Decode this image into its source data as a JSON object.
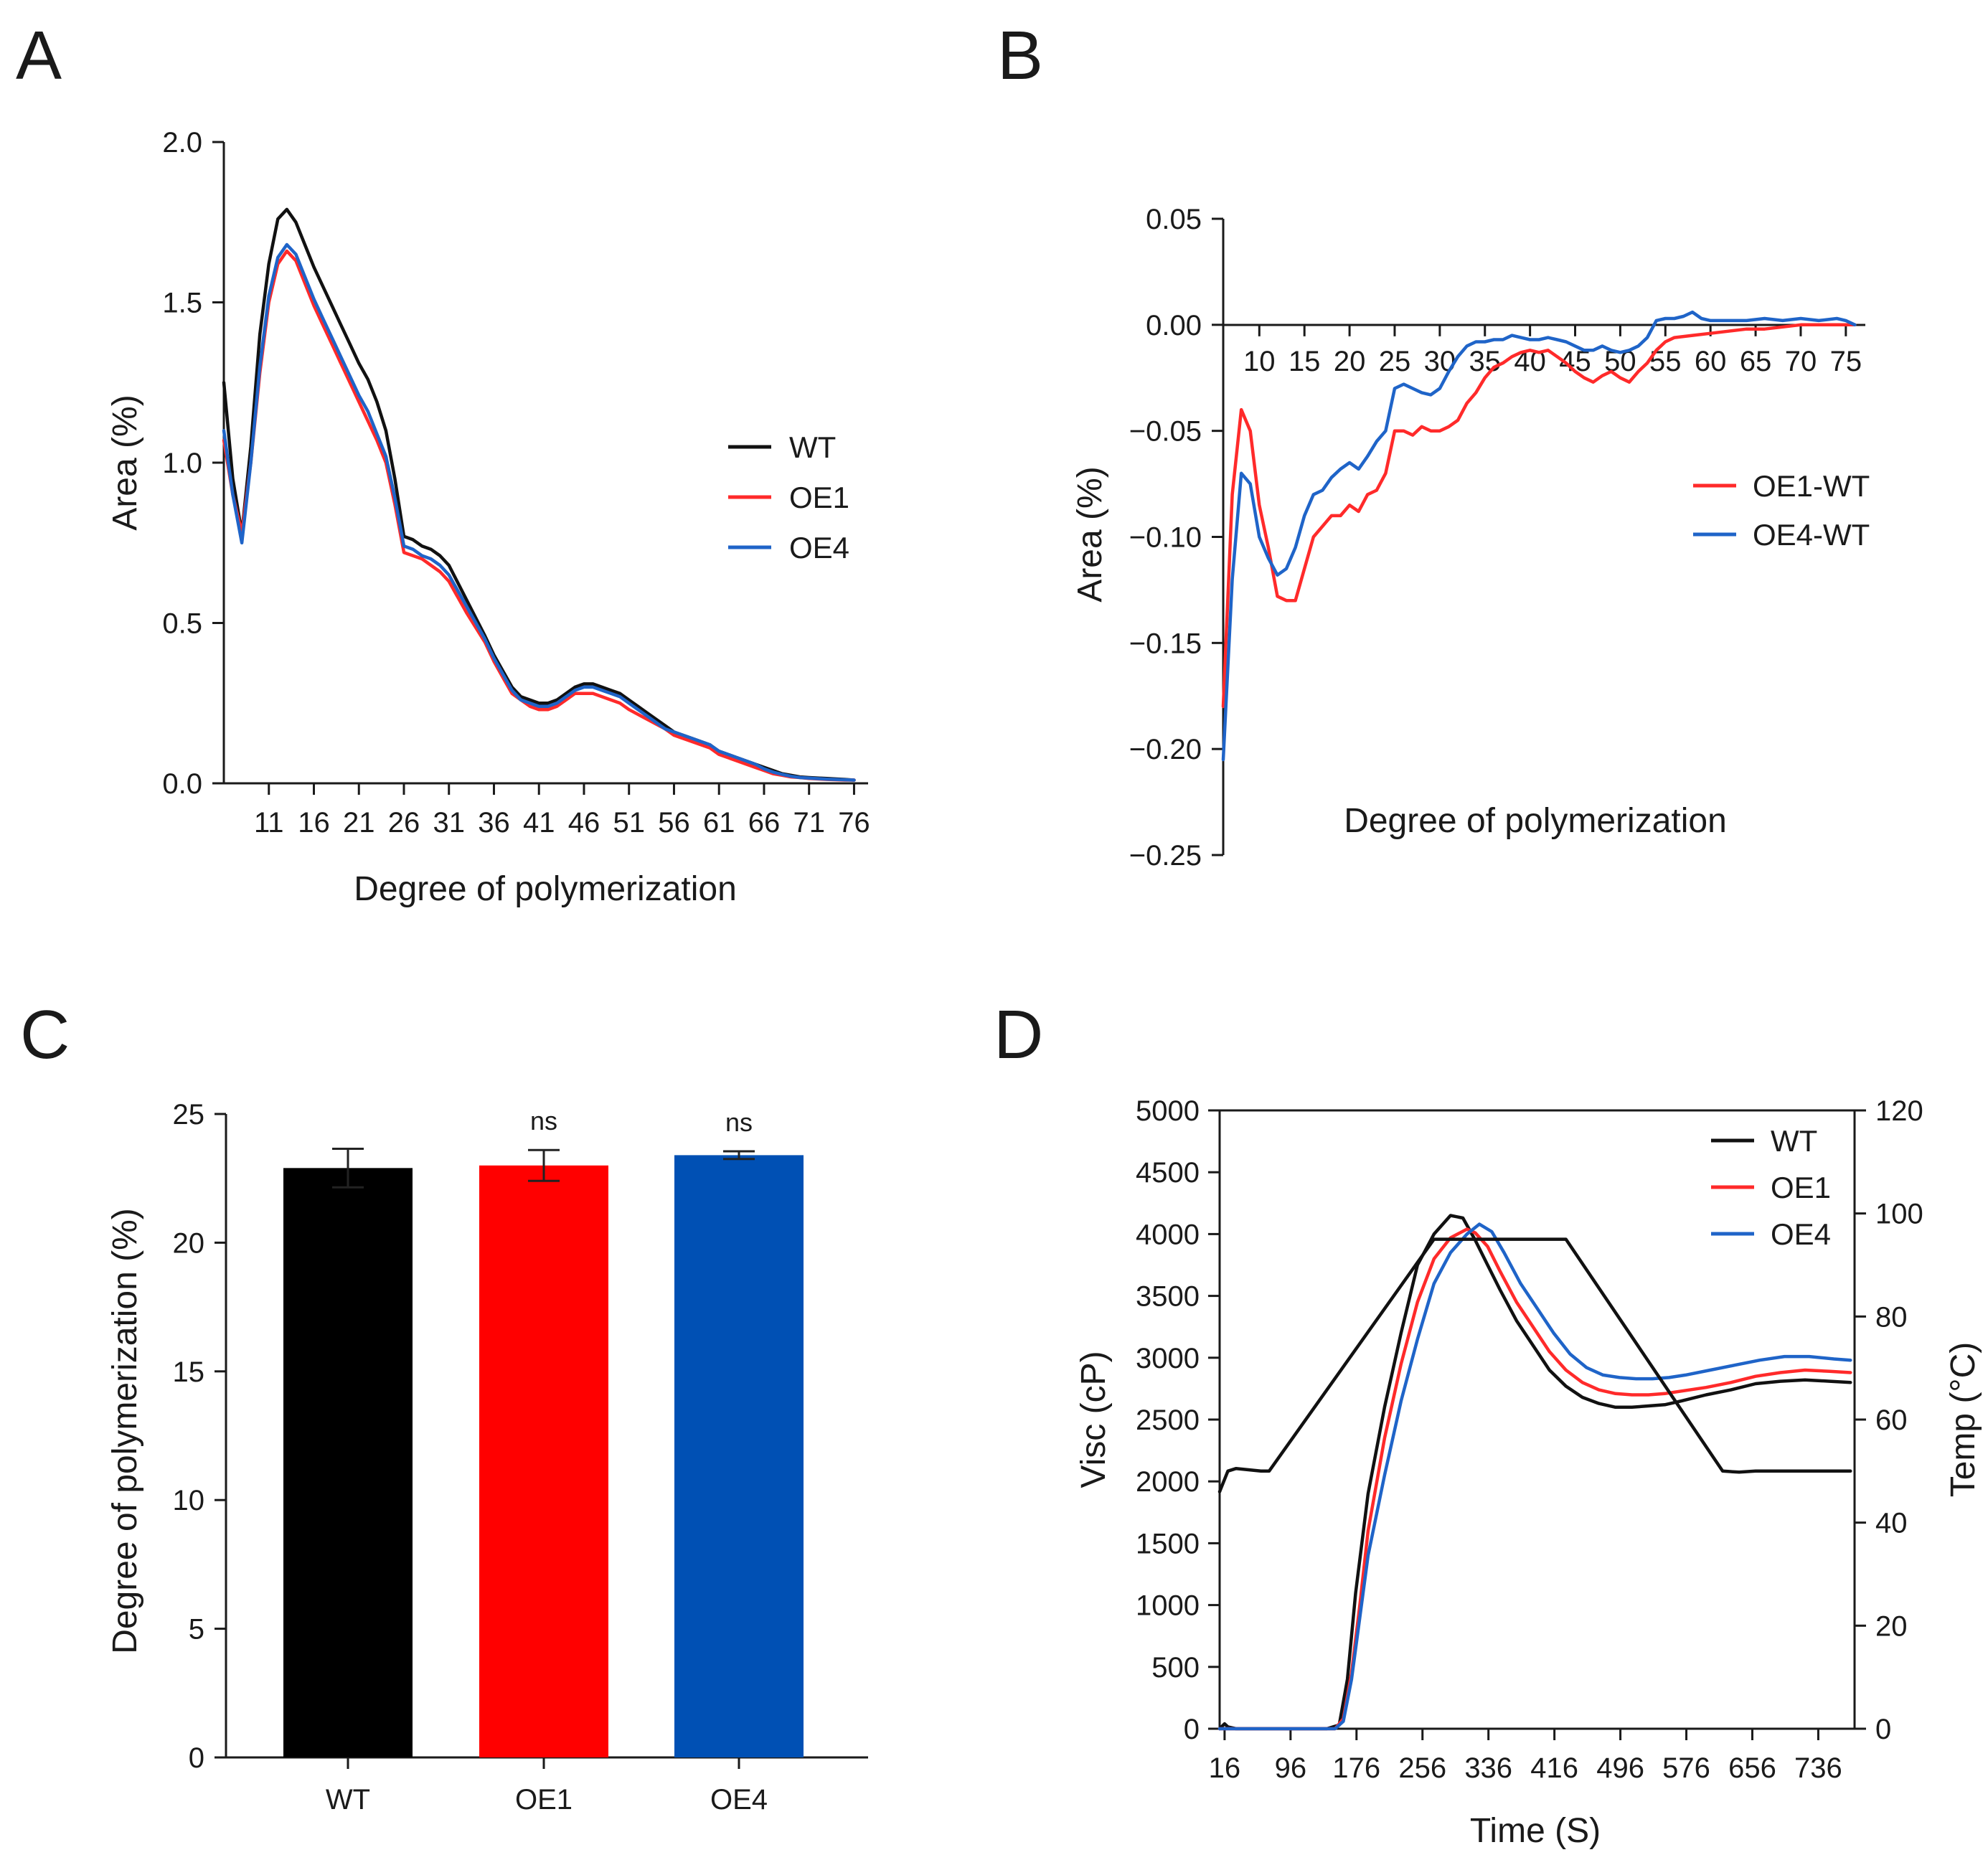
{
  "colors": {
    "WT": "#111111",
    "OE1": "#ff2a2a",
    "OE4": "#1f64c8",
    "bar_WT": "#000000",
    "bar_OE1": "#ff0000",
    "bar_OE4": "#0050b4"
  },
  "chart_data": [
    {
      "panel": "A",
      "type": "line",
      "title": "",
      "xlabel": "Degree of polymerization",
      "ylabel": "Area (%)",
      "xlim": [
        6,
        77
      ],
      "ylim": [
        0,
        2.0
      ],
      "xticks": [
        11,
        16,
        21,
        26,
        31,
        36,
        41,
        46,
        51,
        56,
        61,
        66,
        71,
        76
      ],
      "yticks": [
        0.0,
        0.5,
        1.0,
        1.5,
        2.0
      ],
      "ytick_labels": [
        "0.0",
        "0.5",
        "1.0",
        "1.5",
        "2.0"
      ],
      "legend": [
        "WT",
        "OE1",
        "OE4"
      ],
      "legend_position": "right",
      "series": [
        {
          "name": "WT",
          "x": [
            6,
            7,
            8,
            9,
            10,
            11,
            12,
            13,
            14,
            15,
            16,
            17,
            18,
            19,
            20,
            21,
            22,
            23,
            24,
            25,
            26,
            27,
            28,
            29,
            30,
            31,
            33,
            35,
            36,
            37,
            38,
            39,
            40,
            41,
            42,
            43,
            44,
            45,
            46,
            47,
            48,
            49,
            50,
            51,
            53,
            55,
            56,
            58,
            60,
            61,
            63,
            65,
            66,
            67,
            68,
            69,
            70,
            71,
            73,
            75,
            76
          ],
          "values": [
            1.25,
            0.95,
            0.78,
            1.05,
            1.4,
            1.62,
            1.76,
            1.79,
            1.75,
            1.68,
            1.61,
            1.55,
            1.49,
            1.43,
            1.37,
            1.31,
            1.26,
            1.19,
            1.1,
            0.95,
            0.77,
            0.76,
            0.74,
            0.73,
            0.71,
            0.68,
            0.57,
            0.46,
            0.4,
            0.35,
            0.3,
            0.27,
            0.26,
            0.25,
            0.25,
            0.26,
            0.28,
            0.3,
            0.31,
            0.31,
            0.3,
            0.29,
            0.28,
            0.26,
            0.22,
            0.18,
            0.16,
            0.14,
            0.12,
            0.1,
            0.08,
            0.06,
            0.05,
            0.04,
            0.03,
            0.025,
            0.02,
            0.018,
            0.015,
            0.012,
            0.01
          ]
        },
        {
          "name": "OE1",
          "x": [
            6,
            7,
            8,
            9,
            10,
            11,
            12,
            13,
            14,
            15,
            16,
            17,
            18,
            19,
            20,
            21,
            22,
            23,
            24,
            25,
            26,
            27,
            28,
            29,
            30,
            31,
            33,
            35,
            36,
            37,
            38,
            39,
            40,
            41,
            42,
            43,
            44,
            45,
            46,
            47,
            48,
            49,
            50,
            51,
            53,
            55,
            56,
            58,
            60,
            61,
            63,
            65,
            66,
            67,
            68,
            69,
            70,
            71,
            73,
            75,
            76
          ],
          "values": [
            1.07,
            0.9,
            0.78,
            1.0,
            1.28,
            1.5,
            1.62,
            1.66,
            1.63,
            1.56,
            1.49,
            1.43,
            1.37,
            1.31,
            1.25,
            1.19,
            1.13,
            1.07,
            1.0,
            0.87,
            0.72,
            0.71,
            0.7,
            0.68,
            0.66,
            0.63,
            0.53,
            0.44,
            0.38,
            0.33,
            0.28,
            0.26,
            0.24,
            0.23,
            0.23,
            0.24,
            0.26,
            0.28,
            0.28,
            0.28,
            0.27,
            0.26,
            0.25,
            0.23,
            0.2,
            0.17,
            0.15,
            0.13,
            0.11,
            0.09,
            0.07,
            0.05,
            0.04,
            0.03,
            0.025,
            0.02,
            0.018,
            0.015,
            0.012,
            0.01,
            0.01
          ]
        },
        {
          "name": "OE4",
          "x": [
            6,
            7,
            8,
            9,
            10,
            11,
            12,
            13,
            14,
            15,
            16,
            17,
            18,
            19,
            20,
            21,
            22,
            23,
            24,
            25,
            26,
            27,
            28,
            29,
            30,
            31,
            33,
            35,
            36,
            37,
            38,
            39,
            40,
            41,
            42,
            43,
            44,
            45,
            46,
            47,
            48,
            49,
            50,
            51,
            53,
            55,
            56,
            58,
            60,
            61,
            63,
            65,
            66,
            67,
            68,
            69,
            70,
            71,
            73,
            75,
            76
          ],
          "values": [
            1.1,
            0.9,
            0.75,
            1.0,
            1.3,
            1.52,
            1.64,
            1.68,
            1.65,
            1.58,
            1.51,
            1.45,
            1.39,
            1.33,
            1.27,
            1.21,
            1.16,
            1.09,
            1.02,
            0.89,
            0.74,
            0.73,
            0.71,
            0.7,
            0.68,
            0.65,
            0.55,
            0.45,
            0.39,
            0.34,
            0.29,
            0.26,
            0.25,
            0.24,
            0.24,
            0.25,
            0.27,
            0.29,
            0.3,
            0.3,
            0.29,
            0.28,
            0.27,
            0.25,
            0.21,
            0.17,
            0.16,
            0.14,
            0.12,
            0.1,
            0.08,
            0.06,
            0.045,
            0.035,
            0.028,
            0.022,
            0.018,
            0.016,
            0.013,
            0.011,
            0.01
          ]
        }
      ]
    },
    {
      "panel": "B",
      "type": "line",
      "title": "",
      "xlabel": "Degree of polymerization",
      "ylabel": "Area (%)",
      "xlim": [
        6,
        77
      ],
      "ylim": [
        -0.25,
        0.05
      ],
      "xticks": [
        10,
        15,
        20,
        25,
        30,
        35,
        40,
        45,
        50,
        55,
        60,
        65,
        70,
        75
      ],
      "yticks": [
        -0.25,
        -0.2,
        -0.15,
        -0.1,
        -0.05,
        0.0,
        0.05
      ],
      "ytick_labels": [
        "−0.25",
        "−0.20",
        "−0.15",
        "−0.10",
        "−0.05",
        "0.00",
        "0.05"
      ],
      "legend": [
        "OE1-WT",
        "OE4-WT"
      ],
      "legend_position": "right",
      "series": [
        {
          "name": "OE1-WT",
          "x": [
            6,
            7,
            8,
            9,
            10,
            11,
            12,
            13,
            14,
            15,
            16,
            17,
            18,
            19,
            20,
            21,
            22,
            23,
            24,
            25,
            26,
            27,
            28,
            29,
            30,
            31,
            32,
            33,
            34,
            35,
            36,
            37,
            38,
            39,
            40,
            41,
            42,
            43,
            44,
            45,
            46,
            47,
            48,
            49,
            50,
            51,
            52,
            53,
            54,
            55,
            56,
            58,
            60,
            62,
            64,
            66,
            68,
            70,
            72,
            74,
            76
          ],
          "values": [
            -0.18,
            -0.08,
            -0.04,
            -0.05,
            -0.085,
            -0.105,
            -0.128,
            -0.13,
            -0.13,
            -0.115,
            -0.1,
            -0.095,
            -0.09,
            -0.09,
            -0.085,
            -0.088,
            -0.08,
            -0.078,
            -0.07,
            -0.05,
            -0.05,
            -0.052,
            -0.048,
            -0.05,
            -0.05,
            -0.048,
            -0.045,
            -0.037,
            -0.032,
            -0.025,
            -0.02,
            -0.018,
            -0.015,
            -0.013,
            -0.012,
            -0.013,
            -0.012,
            -0.015,
            -0.018,
            -0.022,
            -0.025,
            -0.027,
            -0.024,
            -0.022,
            -0.025,
            -0.027,
            -0.022,
            -0.018,
            -0.012,
            -0.008,
            -0.006,
            -0.005,
            -0.004,
            -0.003,
            -0.002,
            -0.002,
            -0.001,
            0.0,
            0.0,
            0.0,
            0.0
          ]
        },
        {
          "name": "OE4-WT",
          "x": [
            6,
            7,
            8,
            9,
            10,
            11,
            12,
            13,
            14,
            15,
            16,
            17,
            18,
            19,
            20,
            21,
            22,
            23,
            24,
            25,
            26,
            27,
            28,
            29,
            30,
            31,
            32,
            33,
            34,
            35,
            36,
            37,
            38,
            39,
            40,
            41,
            42,
            43,
            44,
            45,
            46,
            47,
            48,
            49,
            50,
            51,
            52,
            53,
            54,
            55,
            56,
            57,
            58,
            59,
            60,
            62,
            64,
            66,
            68,
            70,
            72,
            74,
            75,
            76
          ],
          "values": [
            -0.205,
            -0.12,
            -0.07,
            -0.075,
            -0.1,
            -0.11,
            -0.118,
            -0.115,
            -0.105,
            -0.09,
            -0.08,
            -0.078,
            -0.072,
            -0.068,
            -0.065,
            -0.068,
            -0.062,
            -0.055,
            -0.05,
            -0.03,
            -0.028,
            -0.03,
            -0.032,
            -0.033,
            -0.03,
            -0.022,
            -0.015,
            -0.01,
            -0.008,
            -0.008,
            -0.007,
            -0.007,
            -0.005,
            -0.006,
            -0.007,
            -0.007,
            -0.006,
            -0.007,
            -0.008,
            -0.01,
            -0.012,
            -0.012,
            -0.01,
            -0.012,
            -0.013,
            -0.012,
            -0.01,
            -0.006,
            0.002,
            0.003,
            0.003,
            0.004,
            0.006,
            0.003,
            0.002,
            0.002,
            0.002,
            0.003,
            0.002,
            0.003,
            0.002,
            0.003,
            0.002,
            0.0
          ]
        }
      ]
    },
    {
      "panel": "C",
      "type": "bar",
      "title": "",
      "xlabel": "",
      "ylabel": "Degree of polymerization (%)",
      "ylim": [
        0,
        25
      ],
      "yticks": [
        0,
        5,
        10,
        15,
        20,
        25
      ],
      "categories": [
        "WT",
        "OE1",
        "OE4"
      ],
      "values": [
        22.9,
        23.0,
        23.4
      ],
      "errors": [
        0.75,
        0.6,
        0.15
      ],
      "annotations": [
        "",
        "ns",
        "ns"
      ]
    },
    {
      "panel": "D",
      "type": "line",
      "title": "",
      "xlabel": "Time (S)",
      "ylabel": "Visc (cP)",
      "y2label": "Temp (°C)",
      "xlim": [
        10,
        780
      ],
      "ylim": [
        0,
        5000
      ],
      "y2lim": [
        0,
        120
      ],
      "xticks": [
        16,
        96,
        176,
        256,
        336,
        416,
        496,
        576,
        656,
        736
      ],
      "yticks": [
        0,
        500,
        1000,
        1500,
        2000,
        2500,
        3000,
        3500,
        4000,
        4500,
        5000
      ],
      "y2ticks": [
        0,
        20,
        40,
        60,
        80,
        100,
        120
      ],
      "legend": [
        "WT",
        "OE1",
        "OE4"
      ],
      "legend_position": "top-right",
      "series": [
        {
          "name": "WT",
          "axis": "left",
          "x": [
            10,
            16,
            20,
            30,
            140,
            155,
            165,
            175,
            190,
            210,
            230,
            250,
            270,
            290,
            305,
            320,
            335,
            350,
            370,
            390,
            410,
            430,
            450,
            470,
            490,
            510,
            530,
            550,
            570,
            600,
            630,
            660,
            690,
            720,
            750,
            775
          ],
          "values": [
            0,
            40,
            15,
            0,
            0,
            30,
            400,
            1100,
            1900,
            2600,
            3200,
            3750,
            4000,
            4150,
            4130,
            3950,
            3750,
            3550,
            3300,
            3100,
            2900,
            2770,
            2680,
            2630,
            2600,
            2600,
            2610,
            2620,
            2650,
            2700,
            2740,
            2790,
            2810,
            2820,
            2810,
            2800
          ]
        },
        {
          "name": "OE1",
          "axis": "left",
          "x": [
            10,
            30,
            150,
            160,
            170,
            180,
            190,
            210,
            230,
            250,
            270,
            290,
            310,
            320,
            335,
            350,
            370,
            390,
            410,
            430,
            450,
            470,
            490,
            510,
            530,
            550,
            570,
            600,
            630,
            660,
            690,
            720,
            750,
            775
          ],
          "values": [
            0,
            0,
            0,
            80,
            450,
            1000,
            1600,
            2350,
            2950,
            3450,
            3800,
            3970,
            4040,
            4010,
            3900,
            3700,
            3450,
            3250,
            3050,
            2900,
            2800,
            2740,
            2710,
            2700,
            2700,
            2710,
            2730,
            2760,
            2800,
            2850,
            2880,
            2900,
            2890,
            2880
          ]
        },
        {
          "name": "OE4",
          "axis": "left",
          "x": [
            10,
            30,
            150,
            160,
            170,
            180,
            190,
            210,
            230,
            250,
            270,
            290,
            310,
            325,
            340,
            355,
            375,
            395,
            415,
            435,
            455,
            475,
            495,
            515,
            535,
            555,
            575,
            605,
            635,
            665,
            695,
            725,
            755,
            775
          ],
          "values": [
            0,
            0,
            0,
            60,
            400,
            900,
            1400,
            2050,
            2650,
            3150,
            3600,
            3850,
            4000,
            4080,
            4020,
            3850,
            3600,
            3400,
            3200,
            3030,
            2920,
            2860,
            2840,
            2830,
            2830,
            2840,
            2860,
            2900,
            2940,
            2980,
            3010,
            3010,
            2990,
            2980
          ]
        },
        {
          "name": "Temp",
          "axis": "right",
          "x": [
            10,
            20,
            30,
            60,
            70,
            270,
            430,
            620,
            640,
            660,
            680,
            775
          ],
          "values": [
            46,
            50,
            50.5,
            50,
            50,
            95,
            95,
            50,
            49.8,
            50,
            50,
            50
          ]
        }
      ]
    }
  ]
}
